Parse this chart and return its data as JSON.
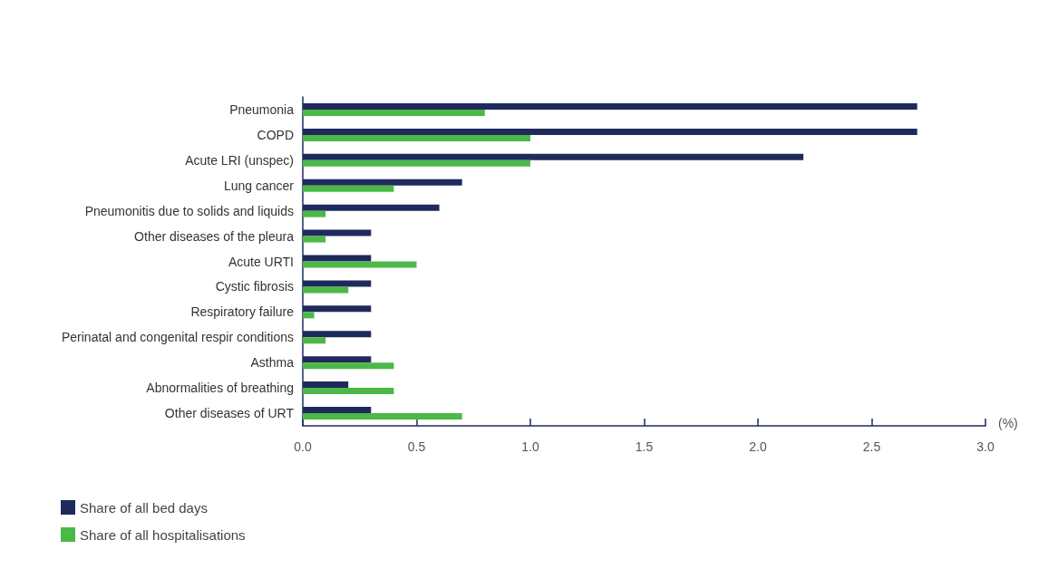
{
  "chart_data": {
    "type": "bar",
    "orientation": "horizontal",
    "xlabel": "(%)",
    "categories": [
      "Pneumonia",
      "COPD",
      "Acute LRI (unspec)",
      "Lung cancer",
      "Pneumonitis due to solids and liquids",
      "Other diseases of the pleura",
      "Acute URTI",
      "Cystic fibrosis",
      "Respiratory failure",
      "Perinatal and congenital respir conditions",
      "Asthma",
      "Abnormalities of breathing",
      "Other diseases of URT"
    ],
    "series": [
      {
        "name": "Share of all bed days",
        "color": "#1f2a5c",
        "values": [
          2.7,
          2.7,
          2.2,
          0.7,
          0.6,
          0.3,
          0.3,
          0.3,
          0.3,
          0.3,
          0.3,
          0.2,
          0.3
        ]
      },
      {
        "name": "Share of all hospitalisations",
        "color": "#4cb848",
        "values": [
          0.8,
          1.0,
          1.0,
          0.4,
          0.1,
          0.1,
          0.5,
          0.2,
          0.05,
          0.1,
          0.4,
          0.4,
          0.7
        ]
      }
    ],
    "xlim": [
      0,
      3
    ],
    "xticks": [
      {
        "value": 0,
        "label": "0.0"
      },
      {
        "value": 0.5,
        "label": "0.5"
      },
      {
        "value": 1,
        "label": "1.0"
      },
      {
        "value": 1.5,
        "label": "1.5"
      },
      {
        "value": 2,
        "label": "2.0"
      },
      {
        "value": 2.5,
        "label": "2.5"
      },
      {
        "value": 3,
        "label": "3.0"
      }
    ],
    "grid": false,
    "legend": "bottom left"
  }
}
